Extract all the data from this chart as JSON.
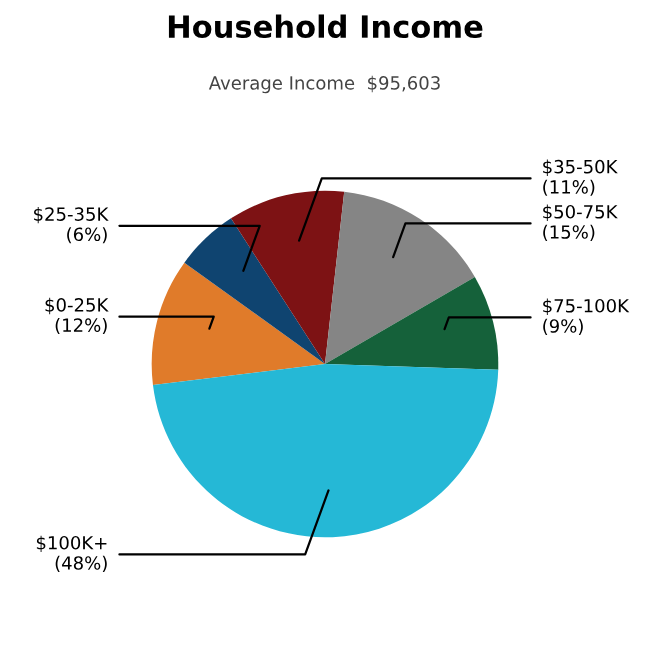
{
  "chart_data": {
    "type": "pie",
    "title": "Household Income",
    "subtitle": "Average Income  $95,603",
    "categories": [
      "$0-25K",
      "$25-35K",
      "$35-50K",
      "$50-75K",
      "$75-100K",
      "$100K+"
    ],
    "values": [
      12,
      6,
      11,
      15,
      9,
      48
    ],
    "colors": [
      "#e07b2a",
      "#0f4470",
      "#7d1214",
      "#858585",
      "#15613a",
      "#25b8d6"
    ],
    "value_labels": [
      "(12%)",
      "(6%)",
      "(11%)",
      "(15%)",
      "(9%)",
      "(48%)"
    ]
  }
}
